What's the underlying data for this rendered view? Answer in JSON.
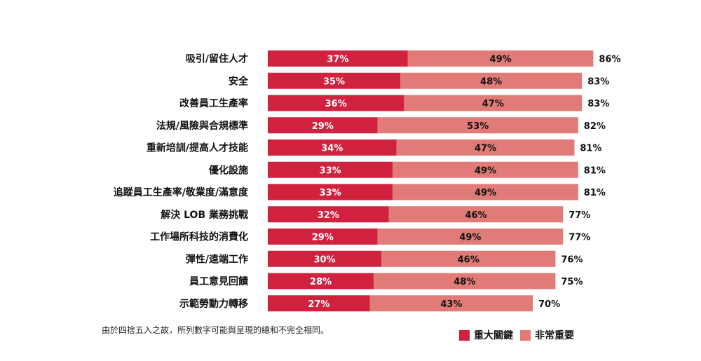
{
  "chart_data": {
    "type": "bar",
    "orientation": "horizontal",
    "stacked": true,
    "categories": [
      "吸引/留住人才",
      "安全",
      "改善員工生產率",
      "法規/風險與合規標準",
      "重新培訓/提高人才技能",
      "優化設施",
      "追蹤員工生產率/敬業度/滿意度",
      "解決 LOB 業務挑戰",
      "工作場所科技的消費化",
      "彈性/遠端工作",
      "員工意見回饋",
      "示範勞動力轉移"
    ],
    "series": [
      {
        "name": "重大關鍵",
        "color": "#d0213f",
        "label_color": "#ffffff",
        "values": [
          37,
          35,
          36,
          29,
          34,
          33,
          33,
          32,
          29,
          30,
          28,
          27
        ]
      },
      {
        "name": "非常重要",
        "color": "#e07b78",
        "label_color": "#111111",
        "values": [
          49,
          48,
          47,
          53,
          47,
          49,
          49,
          46,
          49,
          46,
          48,
          43
        ]
      }
    ],
    "totals": [
      86,
      83,
      83,
      82,
      81,
      81,
      81,
      77,
      77,
      76,
      75,
      70
    ],
    "value_suffix": "%",
    "legend_position": "bottom-right",
    "grid": false
  },
  "footnote": "由於四捨五入之故，所列數字可能與呈現的總和不完全相同。",
  "legend": {
    "items": [
      {
        "label": "重大關鍵",
        "color": "#d0213f"
      },
      {
        "label": "非常重要",
        "color": "#e07b78"
      }
    ]
  }
}
